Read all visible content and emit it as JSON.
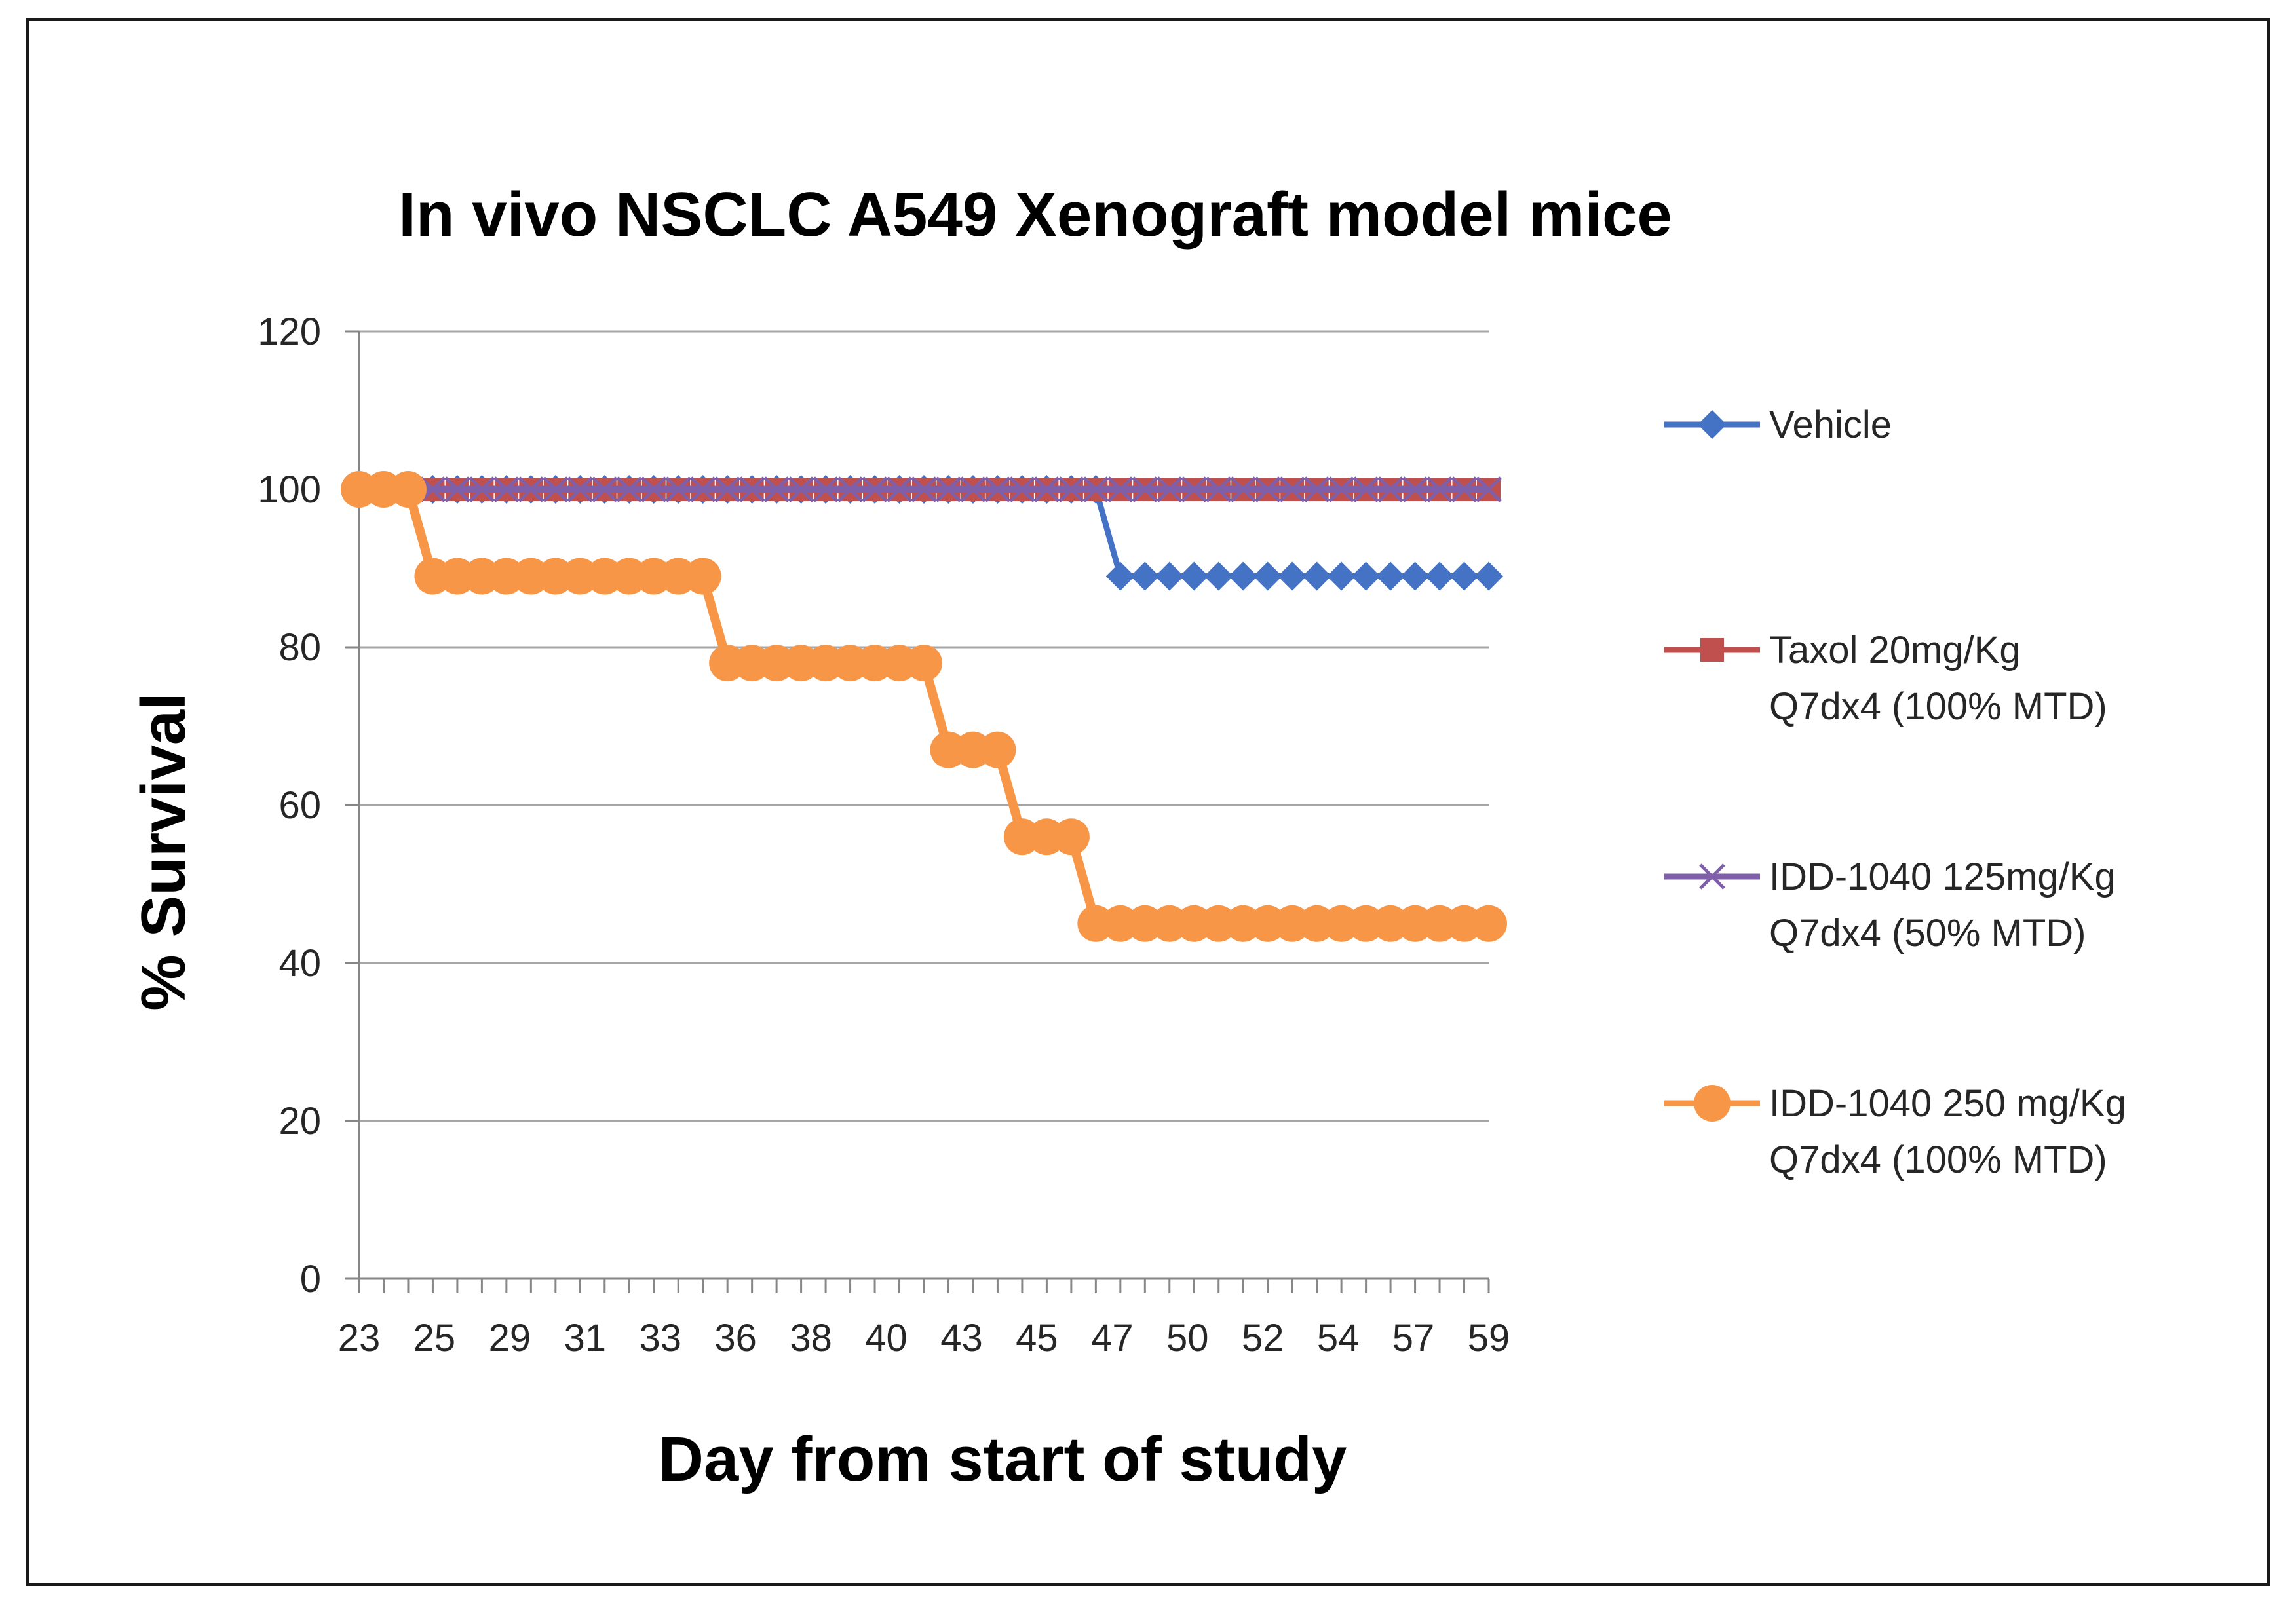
{
  "chart_data": {
    "type": "line",
    "title": "In vivo NSCLC A549 Xenograft model mice",
    "xlabel": "Day from start of study",
    "ylabel": "% Survival",
    "ylim": [
      0,
      120
    ],
    "yticks": [
      0,
      20,
      40,
      60,
      80,
      100,
      120
    ],
    "x_tick_labels": [
      "23",
      "25",
      "29",
      "31",
      "33",
      "36",
      "38",
      "40",
      "43",
      "45",
      "47",
      "50",
      "52",
      "54",
      "57",
      "59"
    ],
    "grid": "horizontal",
    "legend_position": "right",
    "series": [
      {
        "name": "Vehicle",
        "color": "#4472C4",
        "marker": "diamond",
        "values": [
          100,
          100,
          100,
          100,
          100,
          100,
          100,
          100,
          100,
          100,
          100,
          100,
          100,
          100,
          100,
          100,
          100,
          100,
          100,
          100,
          100,
          100,
          100,
          100,
          100,
          100,
          100,
          100,
          100,
          100,
          100,
          89,
          89,
          89,
          89,
          89,
          89,
          89,
          89,
          89,
          89,
          89,
          89,
          89,
          89,
          89,
          89
        ]
      },
      {
        "name": "Taxol 20mg/Kg Q7dx4 (100% MTD)",
        "legend_lines": [
          "Taxol 20mg/Kg",
          "Q7dx4 (100% MTD)"
        ],
        "color": "#C0504D",
        "marker": "square",
        "values": [
          100,
          100,
          100,
          100,
          100,
          100,
          100,
          100,
          100,
          100,
          100,
          100,
          100,
          100,
          100,
          100,
          100,
          100,
          100,
          100,
          100,
          100,
          100,
          100,
          100,
          100,
          100,
          100,
          100,
          100,
          100,
          100,
          100,
          100,
          100,
          100,
          100,
          100,
          100,
          100,
          100,
          100,
          100,
          100,
          100,
          100,
          100
        ]
      },
      {
        "name": "IDD-1040 125mg/Kg Q7dx4 (50% MTD)",
        "legend_lines": [
          "IDD-1040 125mg/Kg",
          "Q7dx4  (50% MTD)"
        ],
        "color": "#7F5FA8",
        "marker": "x",
        "values": [
          100,
          100,
          100,
          100,
          100,
          100,
          100,
          100,
          100,
          100,
          100,
          100,
          100,
          100,
          100,
          100,
          100,
          100,
          100,
          100,
          100,
          100,
          100,
          100,
          100,
          100,
          100,
          100,
          100,
          100,
          100,
          100,
          100,
          100,
          100,
          100,
          100,
          100,
          100,
          100,
          100,
          100,
          100,
          100,
          100,
          100,
          100
        ]
      },
      {
        "name": "IDD-1040 250 mg/Kg Q7dx4 (100% MTD)",
        "legend_lines": [
          "IDD-1040 250 mg/Kg",
          "Q7dx4  (100% MTD)"
        ],
        "color": "#F79646",
        "marker": "circle",
        "values": [
          100,
          100,
          100,
          89,
          89,
          89,
          89,
          89,
          89,
          89,
          89,
          89,
          89,
          89,
          89,
          78,
          78,
          78,
          78,
          78,
          78,
          78,
          78,
          78,
          67,
          67,
          67,
          56,
          56,
          56,
          45,
          45,
          45,
          45,
          45,
          45,
          45,
          45,
          45,
          45,
          45,
          45,
          45,
          45,
          45,
          45,
          45
        ]
      }
    ]
  }
}
